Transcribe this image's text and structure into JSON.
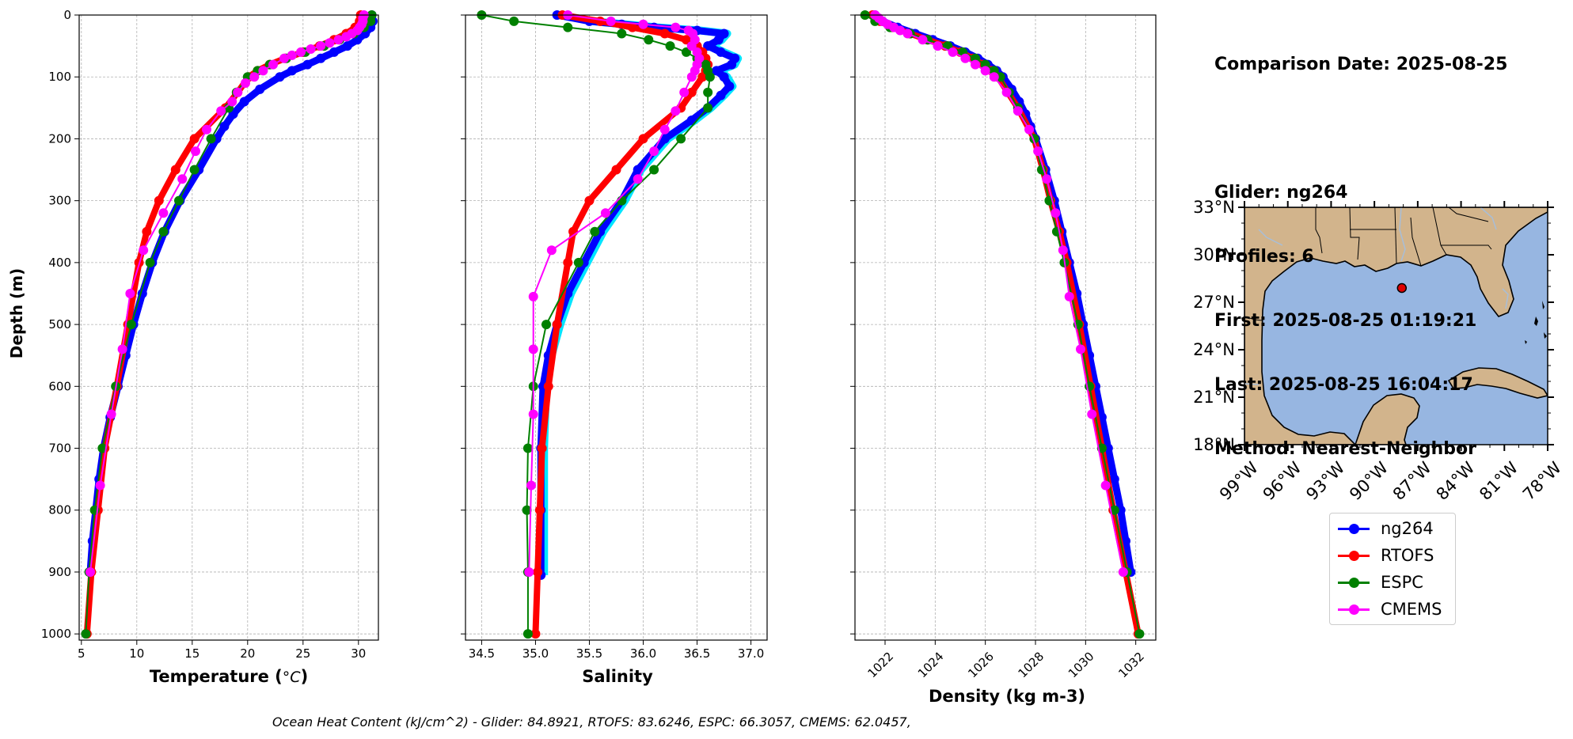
{
  "info": {
    "comparison_date": "Comparison Date: 2025-08-25",
    "glider": "Glider: ng264",
    "profiles": "Profiles: 6",
    "first": "First: 2025-08-25 01:19:21",
    "last": "Last: 2025-08-25 16:04:17",
    "method": "Method: Nearest-Neighbor"
  },
  "ohc_text": "Ocean Heat Content (kJ/cm^2) - Glider: 84.8921,  RTOFS: 83.6246,  ESPC: 66.3057,  CMEMS: 62.0457,",
  "legend": [
    {
      "label": "ng264",
      "color": "#0000ff"
    },
    {
      "label": "RTOFS",
      "color": "#ff0000"
    },
    {
      "label": "ESPC",
      "color": "#008000"
    },
    {
      "label": "CMEMS",
      "color": "#ff00ff"
    }
  ],
  "map": {
    "lat_ticks": [
      "33°N",
      "30°N",
      "27°N",
      "24°N",
      "21°N",
      "18°N"
    ],
    "lon_ticks": [
      "99°W",
      "96°W",
      "93°W",
      "90°W",
      "87°W",
      "84°W",
      "81°W",
      "78°W"
    ],
    "glider_location": {
      "lon": -88.1,
      "lat": 27.9
    },
    "land_color": "#d2b48c",
    "ocean_color": "#97b6e1"
  },
  "chart_data": [
    {
      "type": "line",
      "xlabel": "Temperature (°C)",
      "ylabel": "Depth (m)",
      "xlim": [
        4.8,
        31.8
      ],
      "ylim": [
        1010,
        0
      ],
      "xticks": [
        5,
        10,
        15,
        20,
        25,
        30
      ],
      "yticks": [
        0,
        100,
        200,
        300,
        400,
        500,
        600,
        700,
        800,
        900,
        1000
      ],
      "grid": true,
      "series": [
        {
          "name": "ng264",
          "depth": [
            0,
            10,
            20,
            30,
            40,
            50,
            60,
            70,
            80,
            90,
            100,
            120,
            140,
            160,
            180,
            200,
            250,
            300,
            350,
            400,
            450,
            500,
            550,
            600,
            650,
            700,
            750,
            800,
            850,
            900
          ],
          "values": [
            31.2,
            31.3,
            31.1,
            30.6,
            29.9,
            29.0,
            27.8,
            26.6,
            25.4,
            24.0,
            22.9,
            21.1,
            19.7,
            18.7,
            17.9,
            17.2,
            15.6,
            13.9,
            12.5,
            11.4,
            10.5,
            9.7,
            9.0,
            8.3,
            7.6,
            7.0,
            6.6,
            6.3,
            6.0,
            5.8
          ]
        },
        {
          "name": "RTOFS",
          "depth": [
            0,
            10,
            20,
            30,
            40,
            50,
            60,
            70,
            80,
            90,
            100,
            125,
            150,
            200,
            250,
            300,
            350,
            400,
            500,
            600,
            700,
            800,
            900,
            1000
          ],
          "values": [
            30.2,
            30.1,
            29.7,
            28.9,
            27.8,
            26.5,
            25.0,
            23.4,
            22.0,
            20.9,
            20.1,
            19.1,
            18.0,
            15.2,
            13.5,
            12.0,
            10.9,
            10.2,
            9.2,
            8.2,
            7.1,
            6.5,
            5.9,
            5.5
          ]
        },
        {
          "name": "ESPC",
          "depth": [
            0,
            10,
            20,
            30,
            40,
            50,
            60,
            70,
            80,
            90,
            100,
            125,
            150,
            200,
            250,
            300,
            350,
            400,
            500,
            600,
            700,
            800,
            900,
            1000
          ],
          "values": [
            31.2,
            31.1,
            30.5,
            29.6,
            28.3,
            26.9,
            25.2,
            23.5,
            22.0,
            20.9,
            20.0,
            19.0,
            18.3,
            16.7,
            15.2,
            13.8,
            12.4,
            11.2,
            9.5,
            8.1,
            6.9,
            6.2,
            5.7,
            5.4
          ]
        },
        {
          "name": "CMEMS",
          "depth": [
            0,
            5,
            10,
            15,
            20,
            25,
            30,
            35,
            40,
            45,
            50,
            55,
            60,
            65,
            70,
            80,
            90,
            100,
            110,
            125,
            140,
            155,
            185,
            220,
            265,
            320,
            380,
            450,
            540,
            645,
            760,
            900
          ],
          "values": [
            30.5,
            30.4,
            30.4,
            30.3,
            30.1,
            29.9,
            29.4,
            28.9,
            28.2,
            27.4,
            26.6,
            25.7,
            24.8,
            24.0,
            23.3,
            22.3,
            21.4,
            20.6,
            19.8,
            19.1,
            18.6,
            17.6,
            16.3,
            15.3,
            14.1,
            12.4,
            10.6,
            9.4,
            8.7,
            7.7,
            6.7,
            5.8
          ]
        }
      ]
    },
    {
      "type": "line",
      "xlabel": "Salinity",
      "xlim": [
        34.35,
        37.15
      ],
      "ylim": [
        1010,
        0
      ],
      "xticks": [
        34.5,
        35.0,
        35.5,
        36.0,
        36.5,
        37.0
      ],
      "yticks": [
        0,
        100,
        200,
        300,
        400,
        500,
        600,
        700,
        800,
        900,
        1000
      ],
      "grid": true,
      "series": [
        {
          "name": "ng264",
          "depth": [
            0,
            10,
            15,
            20,
            25,
            30,
            40,
            50,
            60,
            70,
            80,
            90,
            100,
            115,
            130,
            150,
            170,
            200,
            250,
            300,
            350,
            400,
            450,
            500,
            550,
            600,
            700,
            800,
            905
          ],
          "values": [
            35.2,
            35.5,
            35.8,
            36.1,
            36.5,
            36.75,
            36.7,
            36.6,
            36.72,
            36.85,
            36.82,
            36.68,
            36.75,
            36.8,
            36.72,
            36.6,
            36.45,
            36.2,
            35.95,
            35.8,
            35.6,
            35.45,
            35.3,
            35.2,
            35.12,
            35.07,
            35.05,
            35.05,
            35.05
          ]
        },
        {
          "name": "RTOFS",
          "depth": [
            0,
            10,
            20,
            30,
            40,
            50,
            60,
            70,
            80,
            90,
            100,
            125,
            150,
            200,
            250,
            300,
            350,
            400,
            500,
            600,
            700,
            800,
            900,
            1000
          ],
          "values": [
            35.25,
            35.6,
            35.9,
            36.2,
            36.4,
            36.5,
            36.55,
            36.58,
            36.6,
            36.58,
            36.55,
            36.45,
            36.35,
            36.0,
            35.75,
            35.5,
            35.35,
            35.3,
            35.2,
            35.12,
            35.06,
            35.04,
            35.02,
            35.0
          ]
        },
        {
          "name": "ESPC",
          "depth": [
            0,
            10,
            20,
            30,
            40,
            50,
            60,
            70,
            80,
            90,
            100,
            125,
            150,
            200,
            250,
            300,
            350,
            400,
            500,
            600,
            700,
            800,
            900,
            1000
          ],
          "values": [
            34.5,
            34.8,
            35.3,
            35.8,
            36.05,
            36.25,
            36.4,
            36.5,
            36.58,
            36.6,
            36.62,
            36.6,
            36.6,
            36.35,
            36.1,
            35.8,
            35.55,
            35.4,
            35.1,
            34.98,
            34.93,
            34.92,
            34.93,
            34.93
          ]
        },
        {
          "name": "CMEMS",
          "depth": [
            0,
            10,
            15,
            20,
            25,
            30,
            40,
            50,
            60,
            70,
            80,
            90,
            100,
            125,
            155,
            185,
            220,
            265,
            320,
            380,
            455,
            540,
            645,
            760,
            900
          ],
          "values": [
            35.3,
            35.7,
            36.0,
            36.3,
            36.42,
            36.46,
            36.48,
            36.45,
            36.5,
            36.52,
            36.5,
            36.48,
            36.45,
            36.38,
            36.3,
            36.2,
            36.1,
            35.95,
            35.65,
            35.15,
            34.98,
            34.98,
            34.98,
            34.96,
            34.94
          ]
        }
      ]
    },
    {
      "type": "line",
      "xlabel": "Density (kg m-3)",
      "xlim": [
        1020.8,
        1032.8
      ],
      "ylim": [
        1010,
        0
      ],
      "xticks": [
        1022,
        1024,
        1026,
        1028,
        1030,
        1032
      ],
      "yticks": [
        0,
        100,
        200,
        300,
        400,
        500,
        600,
        700,
        800,
        900,
        1000
      ],
      "grid": true,
      "series": [
        {
          "name": "ng264",
          "depth": [
            0,
            10,
            20,
            30,
            40,
            50,
            60,
            70,
            80,
            90,
            100,
            120,
            140,
            160,
            180,
            200,
            250,
            300,
            350,
            400,
            450,
            500,
            550,
            600,
            650,
            700,
            750,
            800,
            850,
            900
          ],
          "values": [
            1021.6,
            1021.9,
            1022.5,
            1023.2,
            1023.9,
            1024.6,
            1025.2,
            1025.7,
            1026.1,
            1026.45,
            1026.7,
            1027.05,
            1027.35,
            1027.6,
            1027.8,
            1028.0,
            1028.4,
            1028.75,
            1029.05,
            1029.35,
            1029.65,
            1029.9,
            1030.15,
            1030.4,
            1030.65,
            1030.9,
            1031.15,
            1031.4,
            1031.6,
            1031.8
          ]
        },
        {
          "name": "RTOFS",
          "depth": [
            0,
            10,
            20,
            30,
            40,
            50,
            60,
            70,
            80,
            90,
            100,
            125,
            150,
            200,
            250,
            300,
            350,
            400,
            500,
            600,
            700,
            800,
            900,
            1000
          ],
          "values": [
            1021.5,
            1021.8,
            1022.3,
            1023.0,
            1023.7,
            1024.4,
            1025.0,
            1025.5,
            1025.9,
            1026.25,
            1026.5,
            1026.9,
            1027.3,
            1027.95,
            1028.3,
            1028.6,
            1028.95,
            1029.25,
            1029.75,
            1030.2,
            1030.65,
            1031.1,
            1031.6,
            1032.1
          ]
        },
        {
          "name": "ESPC",
          "depth": [
            0,
            10,
            20,
            30,
            40,
            50,
            60,
            70,
            80,
            90,
            100,
            125,
            150,
            200,
            250,
            300,
            350,
            400,
            500,
            600,
            700,
            800,
            900,
            1000
          ],
          "values": [
            1021.2,
            1021.6,
            1022.2,
            1023.0,
            1023.7,
            1024.5,
            1025.1,
            1025.6,
            1026.0,
            1026.35,
            1026.6,
            1026.95,
            1027.3,
            1027.95,
            1028.25,
            1028.55,
            1028.85,
            1029.15,
            1029.7,
            1030.15,
            1030.65,
            1031.15,
            1031.65,
            1032.15
          ]
        },
        {
          "name": "CMEMS",
          "depth": [
            0,
            5,
            10,
            15,
            20,
            25,
            30,
            40,
            50,
            60,
            70,
            80,
            90,
            100,
            125,
            155,
            185,
            220,
            265,
            320,
            380,
            455,
            540,
            645,
            760,
            900
          ],
          "values": [
            1021.6,
            1021.75,
            1021.9,
            1022.1,
            1022.35,
            1022.6,
            1022.9,
            1023.5,
            1024.1,
            1024.7,
            1025.2,
            1025.6,
            1026.0,
            1026.35,
            1026.85,
            1027.3,
            1027.75,
            1028.1,
            1028.45,
            1028.8,
            1029.1,
            1029.35,
            1029.8,
            1030.25,
            1030.8,
            1031.5
          ]
        }
      ]
    }
  ]
}
